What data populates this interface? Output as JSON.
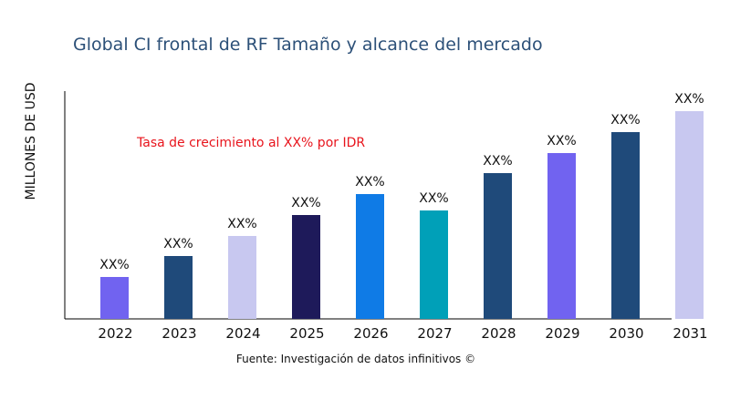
{
  "chart_data": {
    "type": "bar",
    "title": "Global CI frontal de RF Tamaño y alcance del mercado",
    "xlabel": "",
    "ylabel": "MILLONES DE USD",
    "annotation": "Tasa de crecimiento al XX% por IDR",
    "source": "Fuente: Investigación de datos infinitivos ©",
    "categories": [
      "2022",
      "2023",
      "2024",
      "2025",
      "2026",
      "2027",
      "2028",
      "2029",
      "2030",
      "2031"
    ],
    "values": [
      46,
      69,
      91,
      114,
      137,
      119,
      160,
      182,
      205,
      228
    ],
    "data_labels": [
      "XX%",
      "XX%",
      "XX%",
      "XX%",
      "XX%",
      "XX%",
      "XX%",
      "XX%",
      "XX%",
      "XX%"
    ],
    "colors": [
      "#7163f0",
      "#1f4a7a",
      "#c8c8f0",
      "#1e1a5a",
      "#0f7be6",
      "#00a0b8",
      "#1f4a7a",
      "#7163f0",
      "#1f4a7a",
      "#c8c8f0"
    ],
    "ylim": [
      0,
      250
    ],
    "grid": false,
    "legend": "none",
    "annotation_color": "#e8141c"
  }
}
